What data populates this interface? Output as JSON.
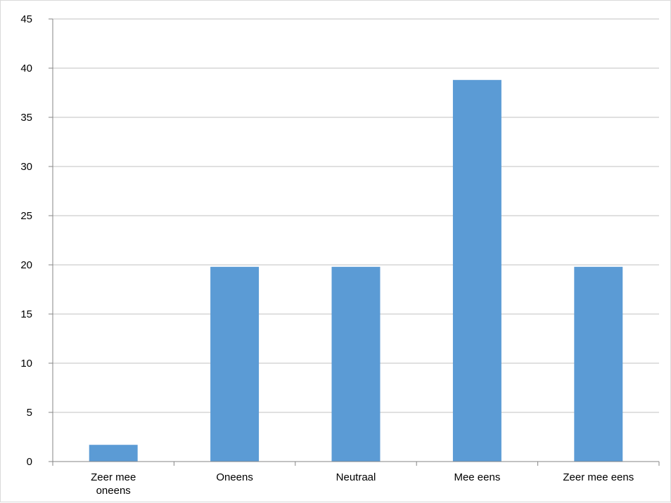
{
  "chart_data": {
    "type": "bar",
    "categories": [
      "Zeer mee oneens",
      "Oneens",
      "Neutraal",
      "Mee eens",
      "Zeer mee eens"
    ],
    "category_label_lines": [
      [
        "Zeer mee",
        "oneens"
      ],
      [
        "Oneens"
      ],
      [
        "Neutraal"
      ],
      [
        "Mee eens"
      ],
      [
        "Zeer mee eens"
      ]
    ],
    "values": [
      1.7,
      19.8,
      19.8,
      38.8,
      19.8
    ],
    "ylim": [
      0,
      45
    ],
    "yticks": [
      0,
      5,
      10,
      15,
      20,
      25,
      30,
      35,
      40,
      45
    ],
    "grid": true,
    "bar_color": "#5b9bd5",
    "grid_color": "#c0c0c0",
    "title": "",
    "xlabel": "",
    "ylabel": ""
  }
}
